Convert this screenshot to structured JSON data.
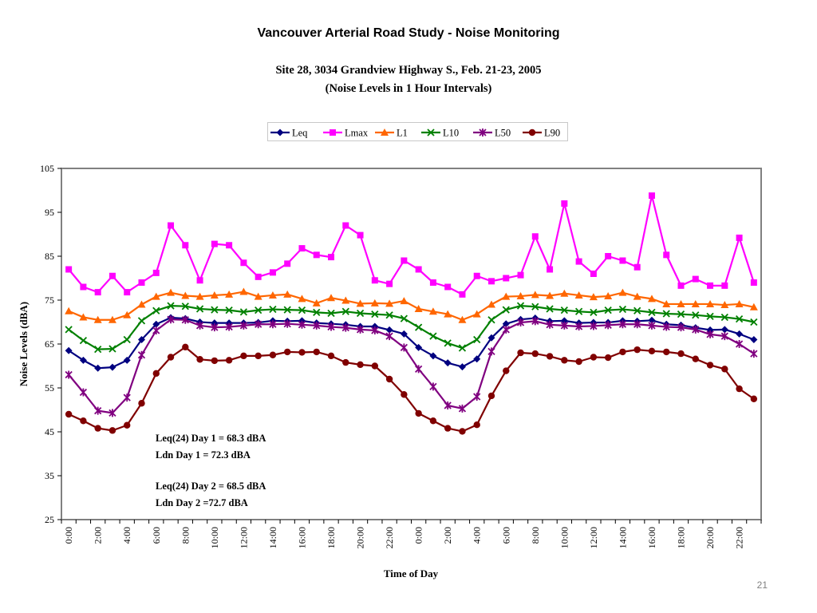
{
  "chart_data": {
    "type": "line",
    "title": "Vancouver Arterial Road Study - Noise Monitoring",
    "subtitle_lines": [
      "Site 28, 3034 Grandview Highway S., Feb. 21-23, 2005",
      "(Noise Levels in 1 Hour Intervals)"
    ],
    "xlabel": "Time of Day",
    "ylabel": "Noise Levels (dBA)",
    "ylim": [
      25,
      105
    ],
    "y_ticks": [
      25,
      35,
      45,
      55,
      65,
      75,
      85,
      95,
      105
    ],
    "x_tick_labels": [
      "0:00",
      "2:00",
      "4:00",
      "6:00",
      "8:00",
      "10:00",
      "12:00",
      "14:00",
      "16:00",
      "18:00",
      "20:00",
      "22:00",
      "0:00",
      "2:00",
      "4:00",
      "6:00",
      "8:00",
      "10:00",
      "12:00",
      "14:00",
      "16:00",
      "18:00",
      "20:00",
      "22:00"
    ],
    "legend_position": "top",
    "grid": false,
    "annotations": [
      "Leq(24) Day 1 = 68.3 dBA",
      "Ldn Day 1 = 72.3 dBA",
      "Leq(24) Day 2 = 68.5 dBA",
      "Ldn Day 2 =72.7 dBA"
    ],
    "series": [
      {
        "name": "Leq",
        "color": "#000080",
        "marker": "diamond",
        "values": [
          63.5,
          61.3,
          59.5,
          59.7,
          61.3,
          66,
          69.5,
          71,
          70.8,
          70,
          69.8,
          69.8,
          69.8,
          69.9,
          70.3,
          70.2,
          70.3,
          69.8,
          69.6,
          69.4,
          69,
          69,
          68.2,
          67.3,
          64.2,
          62.3,
          60.7,
          59.8,
          61.6,
          66.4,
          69.6,
          70.6,
          70.9,
          70.2,
          70.3,
          69.8,
          69.9,
          69.9,
          70.3,
          70.2,
          70.4,
          69.5,
          69.3,
          68.7,
          68.2,
          68.3,
          67.3,
          66
        ]
      },
      {
        "name": "Lmax",
        "color": "#ff00ff",
        "marker": "square",
        "values": [
          82,
          78,
          76.8,
          80.5,
          76.8,
          79,
          81.2,
          92,
          87.5,
          79.5,
          87.8,
          87.5,
          83.5,
          80.3,
          81.3,
          83.3,
          86.8,
          85.3,
          84.8,
          92,
          89.8,
          79.5,
          78.7,
          84,
          82,
          79,
          78,
          76.3,
          80.5,
          79.3,
          80,
          80.7,
          89.5,
          82,
          97,
          83.8,
          81,
          85,
          84,
          82.5,
          98.8,
          85.3,
          78.3,
          79.8,
          78.3,
          78.3,
          89.2,
          79
        ]
      },
      {
        "name": "L1",
        "color": "#ff6600",
        "marker": "triangle",
        "values": [
          72.5,
          71.1,
          70.5,
          70.5,
          71.6,
          74,
          75.8,
          76.7,
          76,
          75.8,
          76.1,
          76.3,
          76.9,
          75.8,
          76.1,
          76.3,
          75.3,
          74.3,
          75.5,
          74.9,
          74.2,
          74.3,
          74.2,
          74.8,
          73,
          72.4,
          71.8,
          70.5,
          71.8,
          74,
          75.8,
          75.9,
          76.2,
          76,
          76.5,
          76.1,
          75.7,
          75.9,
          76.7,
          75.8,
          75.3,
          74.1,
          74.1,
          74.1,
          74.1,
          73.9,
          74.1,
          73.4
        ]
      },
      {
        "name": "L10",
        "color": "#008000",
        "marker": "x",
        "values": [
          68.3,
          65.8,
          63.8,
          63.9,
          66,
          70.3,
          72.6,
          73.7,
          73.6,
          73,
          72.8,
          72.7,
          72.3,
          72.7,
          72.9,
          72.8,
          72.7,
          72.2,
          72,
          72.4,
          72,
          71.8,
          71.6,
          70.8,
          68.8,
          66.8,
          65.2,
          64.1,
          66,
          70.5,
          72.8,
          73.7,
          73.5,
          73,
          72.7,
          72.4,
          72.2,
          72.7,
          72.9,
          72.6,
          72.2,
          71.9,
          71.8,
          71.6,
          71.3,
          71.1,
          70.7,
          70
        ]
      },
      {
        "name": "L50",
        "color": "#800080",
        "marker": "star",
        "values": [
          58,
          54,
          49.8,
          49.3,
          52.8,
          62.5,
          68.1,
          70.6,
          70.5,
          69.2,
          68.8,
          68.9,
          69.2,
          69.5,
          69.5,
          69.6,
          69.4,
          69.2,
          68.9,
          68.7,
          68.3,
          68.1,
          66.8,
          64.2,
          59.3,
          55.3,
          51,
          50.3,
          53,
          63.3,
          68.3,
          69.9,
          70.2,
          69.4,
          69.2,
          69,
          69.1,
          69.3,
          69.5,
          69.5,
          69.2,
          68.9,
          68.8,
          68.3,
          67.2,
          66.8,
          65,
          62.8
        ]
      },
      {
        "name": "L90",
        "color": "#800000",
        "marker": "circle",
        "values": [
          49,
          47.5,
          45.8,
          45.3,
          46.5,
          51.5,
          58.3,
          62,
          64.3,
          61.5,
          61.2,
          61.3,
          62.3,
          62.3,
          62.5,
          63.2,
          63.1,
          63.2,
          62.3,
          60.8,
          60.3,
          60,
          57,
          53.5,
          49.2,
          47.5,
          45.8,
          45.1,
          46.6,
          53.2,
          58.9,
          63,
          62.8,
          62.2,
          61.3,
          61,
          62,
          61.9,
          63.2,
          63.7,
          63.4,
          63.2,
          62.8,
          61.6,
          60.2,
          59.3,
          54.8,
          52.5
        ]
      }
    ]
  },
  "page": {
    "number": "21"
  }
}
